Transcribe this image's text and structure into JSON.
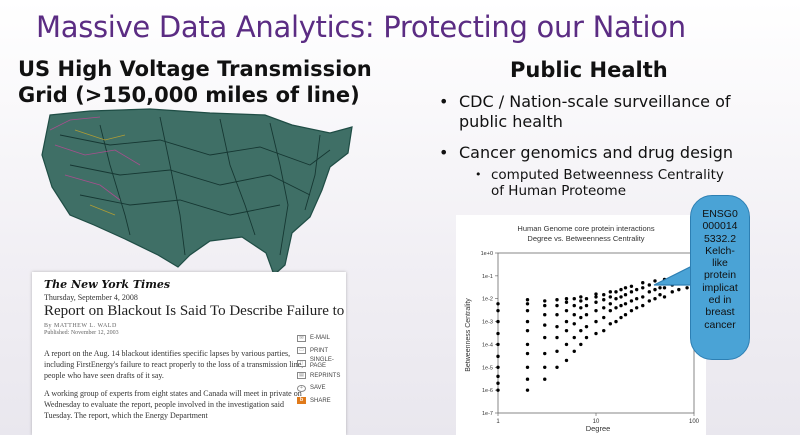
{
  "slide": {
    "title": "Massive Data Analytics: Protecting our Nation",
    "left_heading": "US High Voltage Transmission Grid (>150,000 miles of line)",
    "right_heading": "Public Health",
    "bullets": [
      "CDC / Nation-scale surveillance of public health",
      "Cancer genomics and drug design"
    ],
    "sub_bullet": "computed Betweenness Centrality of Human Proteome",
    "callout": "ENSG00000145332.2 Kelch-like protein implicated in breast cancer",
    "callout_lines": [
      "ENSG0",
      "000014",
      "5332.2",
      "Kelch-",
      "like",
      "protein",
      "implicat",
      "ed in",
      "breast",
      "cancer"
    ]
  },
  "article": {
    "masthead": "The New York Times",
    "date": "Thursday, September 4, 2008",
    "headline": "Report on Blackout Is Said To Describe Failure to React",
    "byline": "By MATTHEW L. WALD",
    "published": "Published: November 12, 2003",
    "para1": "A report on the Aug. 14 blackout identifies specific lapses by various parties, including FirstEnergy's failure to react properly to the loss of a transmission line, people who have seen drafts of it say.",
    "para2": "A working group of experts from eight states and Canada will meet in private on Wednesday to evaluate the report, people involved in the investigation said Tuesday. The report, which the Energy Department",
    "tools": [
      "E-MAIL",
      "PRINT",
      "SINGLE-PAGE",
      "REPRINTS",
      "SAVE",
      "SHARE"
    ]
  },
  "chart_data": {
    "type": "scatter",
    "title": "Human Genome core protein interactions",
    "subtitle": "Degree vs. Betweenness Centrality",
    "xlabel": "Degree",
    "ylabel": "Betweenness Centrality",
    "x_scale": "log",
    "y_scale": "log",
    "xlim": [
      1,
      100
    ],
    "ylim": [
      1e-07,
      1
    ],
    "x_tick_labels": [
      "1",
      "10",
      "100"
    ],
    "y_tick_labels": [
      "1e+0",
      "1e-1",
      "1e-2",
      "1e-3",
      "1e-4",
      "1e-5",
      "1e-6",
      "1e-7"
    ],
    "grid": false,
    "points": [
      [
        1,
        1e-06
      ],
      [
        1,
        2e-06
      ],
      [
        1,
        4e-06
      ],
      [
        1,
        1e-05
      ],
      [
        1,
        3e-05
      ],
      [
        1,
        0.0001
      ],
      [
        1,
        0.0003
      ],
      [
        1,
        0.001
      ],
      [
        1,
        0.003
      ],
      [
        1,
        0.006
      ],
      [
        2,
        1e-06
      ],
      [
        2,
        3e-06
      ],
      [
        2,
        1e-05
      ],
      [
        2,
        4e-05
      ],
      [
        2,
        0.0001
      ],
      [
        2,
        0.0004
      ],
      [
        2,
        0.001
      ],
      [
        2,
        0.003
      ],
      [
        2,
        0.006
      ],
      [
        2,
        0.009
      ],
      [
        3,
        3e-06
      ],
      [
        3,
        1e-05
      ],
      [
        3,
        4e-05
      ],
      [
        3,
        0.0002
      ],
      [
        3,
        0.0007
      ],
      [
        3,
        0.002
      ],
      [
        3,
        0.005
      ],
      [
        3,
        0.008
      ],
      [
        4,
        1e-05
      ],
      [
        4,
        5e-05
      ],
      [
        4,
        0.0002
      ],
      [
        4,
        0.0006
      ],
      [
        4,
        0.002
      ],
      [
        4,
        0.005
      ],
      [
        4,
        0.009
      ],
      [
        5,
        2e-05
      ],
      [
        5,
        0.0001
      ],
      [
        5,
        0.0004
      ],
      [
        5,
        0.001
      ],
      [
        5,
        0.003
      ],
      [
        5,
        0.007
      ],
      [
        5,
        0.01
      ],
      [
        6,
        5e-05
      ],
      [
        6,
        0.0002
      ],
      [
        6,
        0.0008
      ],
      [
        6,
        0.002
      ],
      [
        6,
        0.005
      ],
      [
        6,
        0.01
      ],
      [
        7,
        0.0001
      ],
      [
        7,
        0.0004
      ],
      [
        7,
        0.0015
      ],
      [
        7,
        0.004
      ],
      [
        7,
        0.008
      ],
      [
        7,
        0.012
      ],
      [
        8,
        0.0002
      ],
      [
        8,
        0.0006
      ],
      [
        8,
        0.002
      ],
      [
        8,
        0.005
      ],
      [
        8,
        0.01
      ],
      [
        10,
        0.0003
      ],
      [
        10,
        0.001
      ],
      [
        10,
        0.003
      ],
      [
        10,
        0.007
      ],
      [
        10,
        0.012
      ],
      [
        10,
        0.016
      ],
      [
        12,
        0.0004
      ],
      [
        12,
        0.0015
      ],
      [
        12,
        0.004
      ],
      [
        12,
        0.009
      ],
      [
        12,
        0.015
      ],
      [
        14,
        0.0008
      ],
      [
        14,
        0.003
      ],
      [
        14,
        0.006
      ],
      [
        14,
        0.012
      ],
      [
        14,
        0.02
      ],
      [
        16,
        0.001
      ],
      [
        16,
        0.004
      ],
      [
        16,
        0.01
      ],
      [
        16,
        0.02
      ],
      [
        18,
        0.0015
      ],
      [
        18,
        0.005
      ],
      [
        18,
        0.012
      ],
      [
        18,
        0.025
      ],
      [
        20,
        0.002
      ],
      [
        20,
        0.006
      ],
      [
        20,
        0.015
      ],
      [
        20,
        0.03
      ],
      [
        23,
        0.003
      ],
      [
        23,
        0.008
      ],
      [
        23,
        0.02
      ],
      [
        23,
        0.035
      ],
      [
        26,
        0.004
      ],
      [
        26,
        0.01
      ],
      [
        26,
        0.025
      ],
      [
        30,
        0.005
      ],
      [
        30,
        0.012
      ],
      [
        30,
        0.03
      ],
      [
        30,
        0.05
      ],
      [
        35,
        0.008
      ],
      [
        35,
        0.02
      ],
      [
        35,
        0.04
      ],
      [
        40,
        0.01
      ],
      [
        40,
        0.025
      ],
      [
        40,
        0.06
      ],
      [
        45,
        0.015
      ],
      [
        45,
        0.03
      ],
      [
        50,
        0.012
      ],
      [
        50,
        0.03
      ],
      [
        50,
        0.07
      ],
      [
        60,
        0.02
      ],
      [
        60,
        0.04
      ],
      [
        70,
        0.025
      ],
      [
        70,
        0.05
      ],
      [
        85,
        0.03
      ]
    ]
  },
  "colors": {
    "title": "#5b2c83",
    "callout": "#4aa3d6",
    "map_lines": "#1f4d45"
  }
}
